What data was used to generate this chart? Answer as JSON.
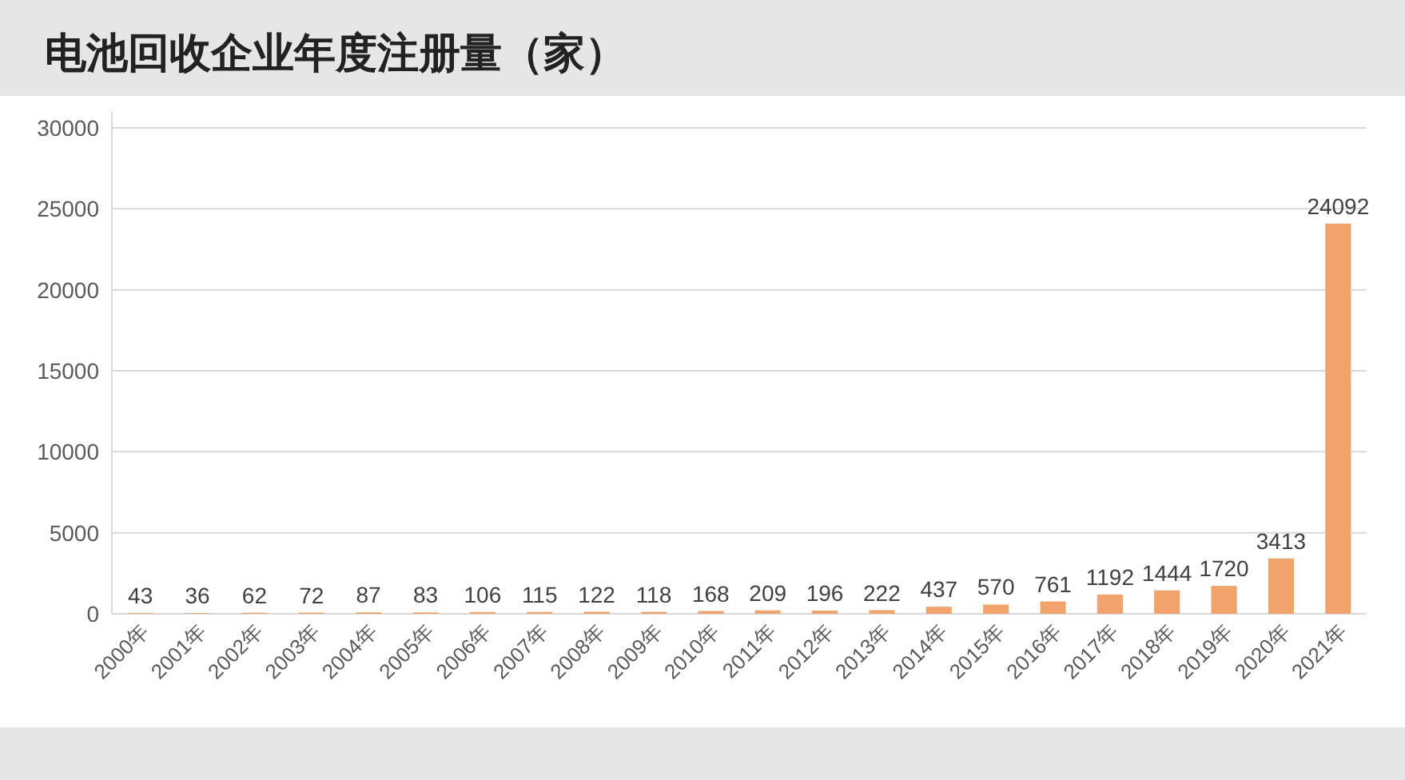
{
  "chart_data": {
    "type": "bar",
    "title": "电池回收企业年度注册量（家）",
    "categories": [
      "2000年",
      "2001年",
      "2002年",
      "2003年",
      "2004年",
      "2005年",
      "2006年",
      "2007年",
      "2008年",
      "2009年",
      "2010年",
      "2011年",
      "2012年",
      "2013年",
      "2014年",
      "2015年",
      "2016年",
      "2017年",
      "2018年",
      "2019年",
      "2020年",
      "2021年"
    ],
    "values": [
      43,
      36,
      62,
      72,
      87,
      83,
      106,
      115,
      122,
      118,
      168,
      209,
      196,
      222,
      437,
      570,
      761,
      1192,
      1444,
      1720,
      3413,
      24092
    ],
    "color": "#f0a36a",
    "ylim": [
      0,
      30000
    ],
    "yticks": [
      0,
      5000,
      10000,
      15000,
      20000,
      25000,
      30000
    ],
    "grid": "y",
    "data_labels": true
  }
}
